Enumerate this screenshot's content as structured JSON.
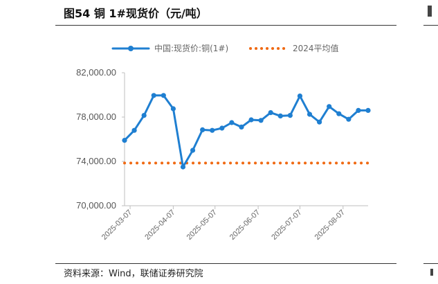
{
  "header": {
    "title": "图54 铜 1#现货价（元/吨）"
  },
  "footer": {
    "source": "资料来源：Wind，联储证券研究院"
  },
  "chart_data": {
    "type": "line",
    "title": "图54 铜 1#现货价（元/吨）",
    "xlabel": "",
    "ylabel": "",
    "ylim": [
      70000,
      82000
    ],
    "y_ticks": [
      "70,000.00",
      "74,000.00",
      "78,000.00",
      "82,000.00"
    ],
    "y_tick_values": [
      70000,
      74000,
      78000,
      82000
    ],
    "x_tick_labels": [
      "2025-03-07",
      "2025-04-07",
      "2025-05-07",
      "2025-06-07",
      "2025-07-07",
      "2025-08-07"
    ],
    "grid": false,
    "legend_position": "top",
    "x": [
      "2025-03-03",
      "2025-03-10",
      "2025-03-17",
      "2025-03-24",
      "2025-03-31",
      "2025-04-07",
      "2025-04-14",
      "2025-04-21",
      "2025-04-28",
      "2025-05-05",
      "2025-05-12",
      "2025-05-19",
      "2025-05-26",
      "2025-06-02",
      "2025-06-09",
      "2025-06-16",
      "2025-06-23",
      "2025-06-30",
      "2025-07-07",
      "2025-07-14",
      "2025-07-21",
      "2025-07-28",
      "2025-08-04",
      "2025-08-11",
      "2025-08-18",
      "2025-08-25"
    ],
    "series": [
      {
        "name": "中国:现货价:铜(1#)",
        "color": "#1f7fd1",
        "style": "line-marker",
        "values": [
          75900,
          76800,
          78150,
          79950,
          79950,
          78750,
          73500,
          75000,
          76850,
          76800,
          77000,
          77500,
          77100,
          77750,
          77700,
          78400,
          78100,
          78150,
          79900,
          78250,
          77550,
          78950,
          78300,
          77800,
          78600,
          78600
        ]
      },
      {
        "name": "2024平均值",
        "color": "#f06a14",
        "style": "dotted",
        "values": [
          73850,
          73850,
          73850,
          73850,
          73850,
          73850,
          73850,
          73850,
          73850,
          73850,
          73850,
          73850,
          73850,
          73850,
          73850,
          73850,
          73850,
          73850,
          73850,
          73850,
          73850,
          73850,
          73850,
          73850,
          73850,
          73850
        ]
      }
    ]
  }
}
